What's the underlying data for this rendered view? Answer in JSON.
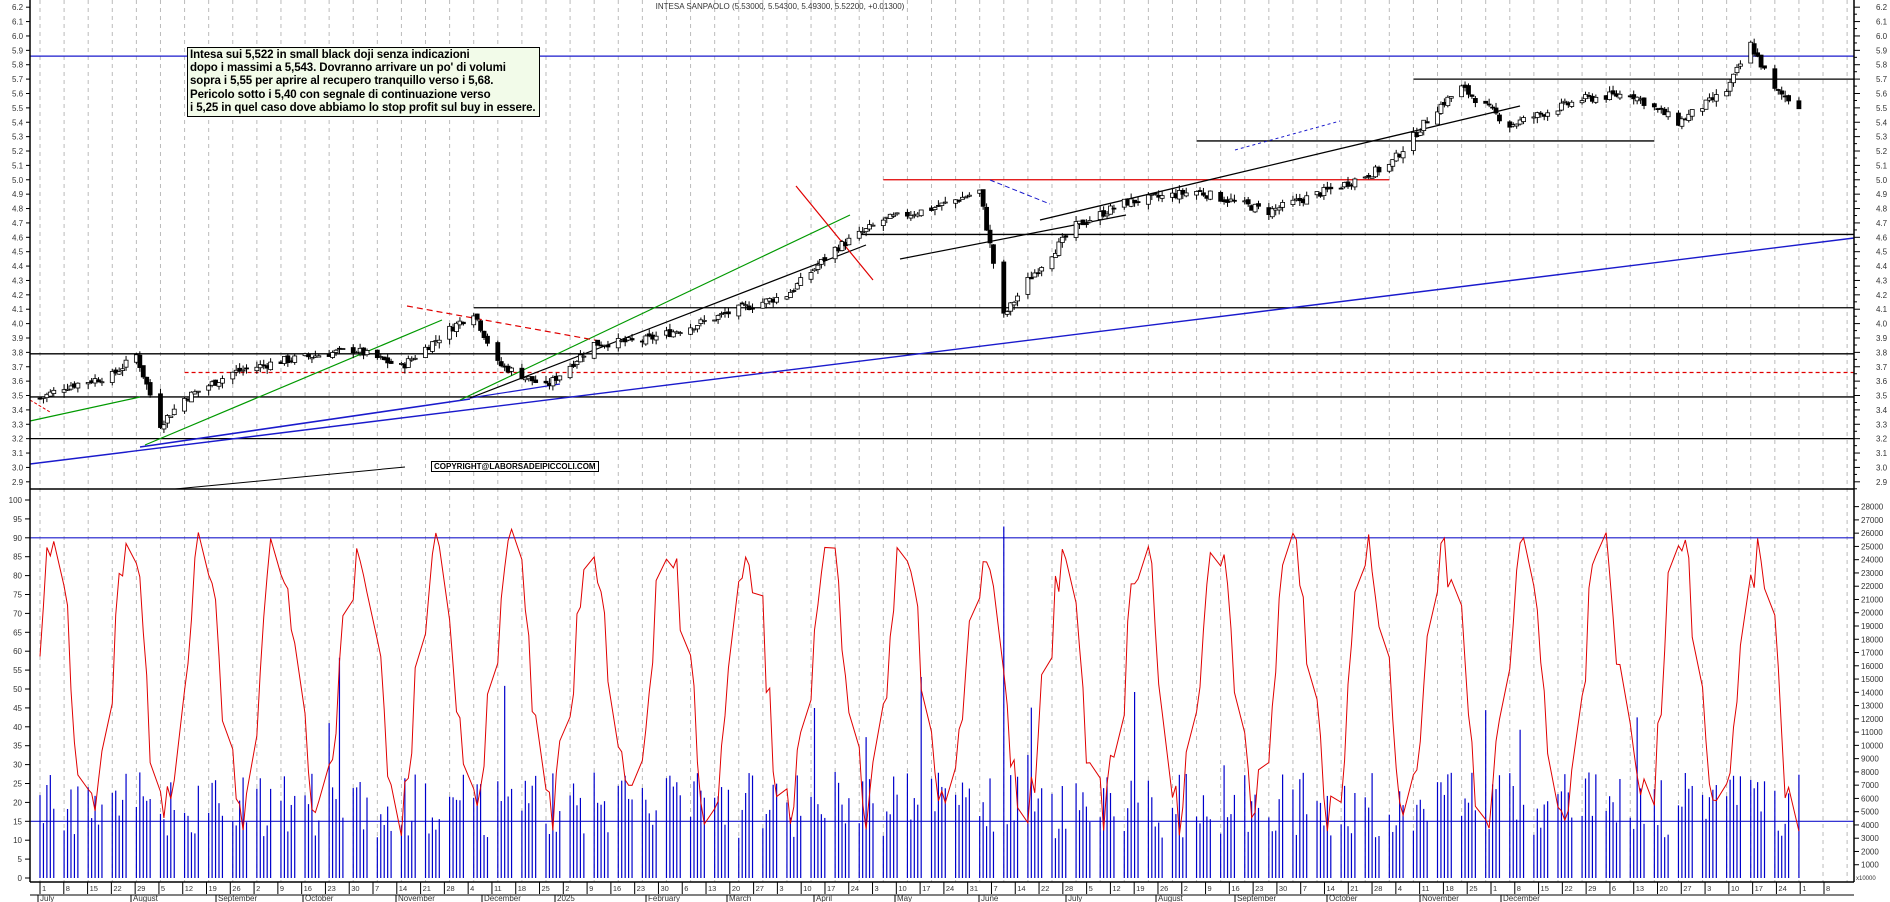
{
  "header": {
    "title": "INTESA SANPAOLO (5.53000, 5.54300, 5.49300, 5.52200, +0.01300)"
  },
  "annotation": {
    "lines": [
      "Intesa sui 5,522 in small black doji senza indicazioni",
      "dopo i massimi a 5,543. Dovranno arrivare un po' di volumi",
      "sopra i 5,55 per aprire al recupero tranquillo verso i 5,68.",
      "Pericolo sotto i 5,40 con segnale di continuazione verso",
      "i 5,25 in quel caso dove abbiamo lo stop profit sul buy in essere."
    ]
  },
  "copyright": "COPYRIGHT@LABORSADEIPICCOLI.COM",
  "colors": {
    "candle_up": "#ffffff",
    "candle_down": "#000000",
    "oscillator": "#e00000",
    "volume": "#0000cc",
    "trendline_blue": "#1a1acc",
    "trendline_green": "#009900",
    "resistance_red": "#e00000",
    "grid": "#bbbbbb"
  },
  "chart_data": [
    {
      "type": "candlestick",
      "title": "INTESA SANPAOLO (5.53000, 5.54300, 5.49300, 5.52200, +0.01300)",
      "last_bar": {
        "open": 5.53,
        "high": 5.543,
        "low": 5.493,
        "close": 5.522,
        "change": 0.013
      },
      "ylim": [
        2.85,
        6.25
      ],
      "yticks": [
        2.9,
        3.0,
        3.1,
        3.2,
        3.3,
        3.4,
        3.5,
        3.6,
        3.7,
        3.8,
        3.9,
        4.0,
        4.1,
        4.2,
        4.3,
        4.4,
        4.5,
        4.6,
        4.7,
        4.8,
        4.9,
        5.0,
        5.1,
        5.2,
        5.3,
        5.4,
        5.5,
        5.6,
        5.7,
        5.8,
        5.9,
        6.0,
        6.1,
        6.2
      ],
      "x_range": [
        "2024-07-01",
        "2025-12-08"
      ],
      "approx_close_path": [
        {
          "date": "2024-07-01",
          "close": 3.48
        },
        {
          "date": "2024-07-08",
          "close": 3.56
        },
        {
          "date": "2024-07-22",
          "close": 3.64
        },
        {
          "date": "2024-07-29",
          "close": 3.78
        },
        {
          "date": "2024-08-05",
          "close": 3.3
        },
        {
          "date": "2024-08-12",
          "close": 3.48
        },
        {
          "date": "2024-08-26",
          "close": 3.66
        },
        {
          "date": "2024-09-09",
          "close": 3.74
        },
        {
          "date": "2024-09-30",
          "close": 3.82
        },
        {
          "date": "2024-10-14",
          "close": 3.7
        },
        {
          "date": "2024-10-28",
          "close": 3.96
        },
        {
          "date": "2024-11-04",
          "close": 4.08
        },
        {
          "date": "2024-11-11",
          "close": 3.72
        },
        {
          "date": "2024-11-25",
          "close": 3.56
        },
        {
          "date": "2024-12-09",
          "close": 3.86
        },
        {
          "date": "2024-12-23",
          "close": 3.88
        },
        {
          "date": "2025-01-06",
          "close": 3.98
        },
        {
          "date": "2025-01-20",
          "close": 4.1
        },
        {
          "date": "2025-02-03",
          "close": 4.2
        },
        {
          "date": "2025-02-17",
          "close": 4.52
        },
        {
          "date": "2025-03-03",
          "close": 4.72
        },
        {
          "date": "2025-03-17",
          "close": 4.8
        },
        {
          "date": "2025-03-31",
          "close": 4.92
        },
        {
          "date": "2025-04-07",
          "close": 4.05
        },
        {
          "date": "2025-04-14",
          "close": 4.3
        },
        {
          "date": "2025-04-28",
          "close": 4.68
        },
        {
          "date": "2025-05-12",
          "close": 4.84
        },
        {
          "date": "2025-06-02",
          "close": 4.92
        },
        {
          "date": "2025-06-23",
          "close": 4.78
        },
        {
          "date": "2025-07-14",
          "close": 4.96
        },
        {
          "date": "2025-07-28",
          "close": 5.1
        },
        {
          "date": "2025-08-11",
          "close": 5.5
        },
        {
          "date": "2025-08-18",
          "close": 5.64
        },
        {
          "date": "2025-09-01",
          "close": 5.38
        },
        {
          "date": "2025-09-22",
          "close": 5.56
        },
        {
          "date": "2025-10-06",
          "close": 5.6
        },
        {
          "date": "2025-10-20",
          "close": 5.4
        },
        {
          "date": "2025-11-03",
          "close": 5.62
        },
        {
          "date": "2025-11-10",
          "close": 5.94
        },
        {
          "date": "2025-11-17",
          "close": 5.62
        },
        {
          "date": "2025-11-24",
          "close": 5.522
        }
      ],
      "horizontal_lines": [
        {
          "y": 5.86,
          "color": "blue"
        },
        {
          "y": 5.7,
          "color": "black",
          "from": "2025-08-04"
        },
        {
          "y": 5.27,
          "color": "black",
          "from": "2025-06-02",
          "to": "2025-10-13"
        },
        {
          "y": 5.0,
          "color": "red",
          "from": "2025-03-03",
          "to": "2025-07-28"
        },
        {
          "y": 4.62,
          "color": "black",
          "from": "2025-02-24"
        },
        {
          "y": 4.11,
          "color": "black",
          "from": "2024-11-04"
        },
        {
          "y": 3.79,
          "color": "black"
        },
        {
          "y": 3.66,
          "color": "red-dashed",
          "from": "2024-08-12"
        },
        {
          "y": 3.49,
          "color": "black"
        },
        {
          "y": 3.2,
          "color": "black"
        }
      ],
      "annotations": [
        "Intesa sui 5,522 in small black doji senza indicazioni",
        "COPYRIGHT@LABORSADEIPICCOLI.COM"
      ]
    },
    {
      "type": "line+bar",
      "name": "oscillator_and_volume",
      "left_ylim": [
        0,
        100
      ],
      "left_yticks": [
        0,
        5,
        10,
        15,
        20,
        25,
        30,
        35,
        40,
        45,
        50,
        55,
        60,
        65,
        70,
        75,
        80,
        85,
        90,
        95,
        100
      ],
      "right_ylim": [
        0,
        28000
      ],
      "right_yticks": [
        1000,
        2000,
        3000,
        4000,
        5000,
        6000,
        7000,
        8000,
        9000,
        10000,
        11000,
        12000,
        13000,
        14000,
        15000,
        16000,
        17000,
        18000,
        19000,
        20000,
        21000,
        22000,
        23000,
        24000,
        25000,
        26000,
        27000,
        28000
      ],
      "right_unit": "x10000",
      "reference_lines": [
        {
          "y": 90,
          "color": "blue"
        },
        {
          "y": 15,
          "color": "blue"
        }
      ],
      "series": [
        {
          "name": "oscillator",
          "color": "red",
          "approx_peaks": [
            88,
            89,
            88,
            87,
            87,
            88,
            88,
            88,
            89,
            89,
            92
          ]
        },
        {
          "name": "volume",
          "color": "blue",
          "approx_typical": 20,
          "max_spike_date": "2025-04-07"
        }
      ]
    }
  ],
  "axis": {
    "price_ticks": [
      "6.2",
      "6.1",
      "6.0",
      "5.9",
      "5.8",
      "5.7",
      "5.6",
      "5.5",
      "5.4",
      "5.3",
      "5.2",
      "5.1",
      "5.0",
      "4.9",
      "4.8",
      "4.7",
      "4.6",
      "4.5",
      "4.4",
      "4.3",
      "4.2",
      "4.1",
      "4.0",
      "3.9",
      "3.8",
      "3.7",
      "3.6",
      "3.5",
      "3.4",
      "3.3",
      "3.2",
      "3.1",
      "3.0",
      "2.9"
    ],
    "osc_ticks": [
      "100",
      "95",
      "90",
      "85",
      "80",
      "75",
      "70",
      "65",
      "60",
      "55",
      "50",
      "45",
      "40",
      "35",
      "30",
      "25",
      "20",
      "15",
      "10",
      "5",
      "0"
    ],
    "vol_ticks": [
      "28000",
      "27000",
      "26000",
      "25000",
      "24000",
      "23000",
      "22000",
      "21000",
      "20000",
      "19000",
      "18000",
      "17000",
      "16000",
      "15000",
      "14000",
      "13000",
      "12000",
      "11000",
      "10000",
      "9000",
      "8000",
      "7000",
      "6000",
      "5000",
      "4000",
      "3000",
      "2000",
      "1000"
    ],
    "vol_unit": "x10000",
    "day_ticks": [
      "1",
      "8",
      "15",
      "22",
      "29",
      "5",
      "12",
      "19",
      "26",
      "2",
      "9",
      "16",
      "23",
      "30",
      "7",
      "14",
      "21",
      "28",
      "4",
      "11",
      "18",
      "25",
      "2",
      "9",
      "16",
      "23",
      "30",
      "6",
      "13",
      "20",
      "27",
      "3",
      "10",
      "17",
      "24",
      "3",
      "10",
      "17",
      "24",
      "31",
      "7",
      "14",
      "22",
      "28",
      "5",
      "12",
      "19",
      "26",
      "2",
      "9",
      "16",
      "23",
      "30",
      "7",
      "14",
      "21",
      "28",
      "4",
      "11",
      "18",
      "25",
      "1",
      "8",
      "15",
      "22",
      "29",
      "6",
      "13",
      "20",
      "27",
      "3",
      "10",
      "17",
      "24",
      "1",
      "8"
    ],
    "months": [
      "July",
      "August",
      "September",
      "October",
      "November",
      "December",
      "2025",
      "February",
      "March",
      "April",
      "May",
      "June",
      "July",
      "August",
      "September",
      "October",
      "November",
      "December"
    ]
  }
}
